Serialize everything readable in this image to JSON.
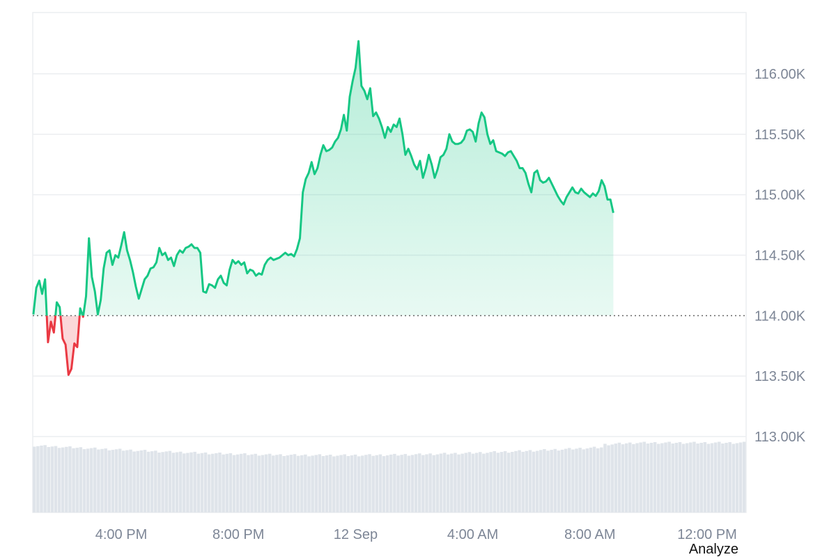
{
  "chart_data": {
    "type": "area",
    "baseline": 114000,
    "ylim": [
      112400,
      116500
    ],
    "y_ticks": [
      {
        "value": 116000,
        "label": "116.00K"
      },
      {
        "value": 115500,
        "label": "115.50K"
      },
      {
        "value": 115000,
        "label": "115.00K"
      },
      {
        "value": 114500,
        "label": "114.50K"
      },
      {
        "value": 114000,
        "label": "114.00K"
      },
      {
        "value": 113500,
        "label": "113.50K"
      },
      {
        "value": 113000,
        "label": "113.00K"
      }
    ],
    "x_ticks": [
      {
        "hour": 3.8,
        "label": "4:00 PM"
      },
      {
        "hour": 7.8,
        "label": "8:00 PM"
      },
      {
        "hour": 11.8,
        "label": "12 Sep"
      },
      {
        "hour": 15.8,
        "label": "4:00 AM"
      },
      {
        "hour": 19.8,
        "label": "8:00 AM"
      },
      {
        "hour": 23.8,
        "label": "12:00 PM"
      }
    ],
    "x_range_hours": [
      0.8,
      25.2
    ],
    "series": [
      {
        "points": [
          [
            0.8,
            114010
          ],
          [
            0.9,
            114230
          ],
          [
            1.0,
            114290
          ],
          [
            1.1,
            114180
          ],
          [
            1.2,
            114300
          ],
          [
            1.3,
            113780
          ],
          [
            1.4,
            113950
          ],
          [
            1.5,
            113860
          ],
          [
            1.6,
            114110
          ],
          [
            1.7,
            114070
          ],
          [
            1.8,
            113810
          ],
          [
            1.9,
            113760
          ],
          [
            2.0,
            113510
          ],
          [
            2.1,
            113560
          ],
          [
            2.2,
            113770
          ],
          [
            2.3,
            113740
          ],
          [
            2.4,
            114060
          ],
          [
            2.5,
            113990
          ],
          [
            2.6,
            114160
          ],
          [
            2.7,
            114640
          ],
          [
            2.8,
            114320
          ],
          [
            2.9,
            114200
          ],
          [
            3.0,
            114010
          ],
          [
            3.1,
            114130
          ],
          [
            3.2,
            114390
          ],
          [
            3.3,
            114520
          ],
          [
            3.4,
            114540
          ],
          [
            3.5,
            114420
          ],
          [
            3.6,
            114500
          ],
          [
            3.7,
            114480
          ],
          [
            3.8,
            114580
          ],
          [
            3.9,
            114690
          ],
          [
            4.0,
            114540
          ],
          [
            4.1,
            114460
          ],
          [
            4.2,
            114360
          ],
          [
            4.3,
            114240
          ],
          [
            4.4,
            114140
          ],
          [
            4.5,
            114220
          ],
          [
            4.6,
            114300
          ],
          [
            4.7,
            114330
          ],
          [
            4.8,
            114390
          ],
          [
            4.9,
            114400
          ],
          [
            5.0,
            114440
          ],
          [
            5.1,
            114560
          ],
          [
            5.2,
            114500
          ],
          [
            5.3,
            114520
          ],
          [
            5.4,
            114460
          ],
          [
            5.5,
            114480
          ],
          [
            5.6,
            114410
          ],
          [
            5.7,
            114500
          ],
          [
            5.8,
            114540
          ],
          [
            5.9,
            114520
          ],
          [
            6.0,
            114560
          ],
          [
            6.1,
            114570
          ],
          [
            6.2,
            114590
          ],
          [
            6.3,
            114560
          ],
          [
            6.4,
            114560
          ],
          [
            6.5,
            114520
          ],
          [
            6.6,
            114200
          ],
          [
            6.7,
            114190
          ],
          [
            6.8,
            114260
          ],
          [
            6.9,
            114250
          ],
          [
            7.0,
            114230
          ],
          [
            7.1,
            114300
          ],
          [
            7.2,
            114330
          ],
          [
            7.3,
            114270
          ],
          [
            7.4,
            114250
          ],
          [
            7.5,
            114380
          ],
          [
            7.6,
            114460
          ],
          [
            7.7,
            114430
          ],
          [
            7.8,
            114450
          ],
          [
            7.9,
            114420
          ],
          [
            8.0,
            114440
          ],
          [
            8.1,
            114350
          ],
          [
            8.2,
            114380
          ],
          [
            8.3,
            114370
          ],
          [
            8.4,
            114330
          ],
          [
            8.5,
            114350
          ],
          [
            8.6,
            114340
          ],
          [
            8.7,
            114420
          ],
          [
            8.8,
            114460
          ],
          [
            8.9,
            114480
          ],
          [
            9.0,
            114460
          ],
          [
            9.1,
            114470
          ],
          [
            9.2,
            114480
          ],
          [
            9.3,
            114500
          ],
          [
            9.4,
            114520
          ],
          [
            9.5,
            114500
          ],
          [
            9.6,
            114510
          ],
          [
            9.7,
            114490
          ],
          [
            9.8,
            114550
          ],
          [
            9.9,
            114640
          ],
          [
            10.0,
            115020
          ],
          [
            10.1,
            115130
          ],
          [
            10.2,
            115180
          ],
          [
            10.3,
            115270
          ],
          [
            10.4,
            115170
          ],
          [
            10.5,
            115220
          ],
          [
            10.6,
            115330
          ],
          [
            10.7,
            115410
          ],
          [
            10.8,
            115360
          ],
          [
            10.9,
            115370
          ],
          [
            11.0,
            115390
          ],
          [
            11.1,
            115440
          ],
          [
            11.2,
            115470
          ],
          [
            11.3,
            115540
          ],
          [
            11.4,
            115660
          ],
          [
            11.5,
            115530
          ],
          [
            11.6,
            115810
          ],
          [
            11.7,
            115940
          ],
          [
            11.8,
            116050
          ],
          [
            11.9,
            116270
          ],
          [
            12.0,
            115900
          ],
          [
            12.1,
            115860
          ],
          [
            12.2,
            115790
          ],
          [
            12.3,
            115880
          ],
          [
            12.4,
            115650
          ],
          [
            12.5,
            115680
          ],
          [
            12.6,
            115630
          ],
          [
            12.7,
            115560
          ],
          [
            12.8,
            115470
          ],
          [
            12.9,
            115560
          ],
          [
            13.0,
            115520
          ],
          [
            13.1,
            115580
          ],
          [
            13.2,
            115560
          ],
          [
            13.3,
            115630
          ],
          [
            13.4,
            115500
          ],
          [
            13.5,
            115330
          ],
          [
            13.6,
            115380
          ],
          [
            13.7,
            115320
          ],
          [
            13.8,
            115250
          ],
          [
            13.9,
            115210
          ],
          [
            14.0,
            115280
          ],
          [
            14.1,
            115140
          ],
          [
            14.2,
            115220
          ],
          [
            14.3,
            115330
          ],
          [
            14.4,
            115250
          ],
          [
            14.5,
            115140
          ],
          [
            14.6,
            115210
          ],
          [
            14.7,
            115310
          ],
          [
            14.8,
            115330
          ],
          [
            14.9,
            115380
          ],
          [
            15.0,
            115500
          ],
          [
            15.1,
            115440
          ],
          [
            15.2,
            115420
          ],
          [
            15.3,
            115420
          ],
          [
            15.4,
            115430
          ],
          [
            15.5,
            115460
          ],
          [
            15.6,
            115530
          ],
          [
            15.7,
            115540
          ],
          [
            15.8,
            115520
          ],
          [
            15.9,
            115440
          ],
          [
            16.0,
            115590
          ],
          [
            16.1,
            115680
          ],
          [
            16.2,
            115640
          ],
          [
            16.3,
            115500
          ],
          [
            16.4,
            115420
          ],
          [
            16.5,
            115450
          ],
          [
            16.6,
            115360
          ],
          [
            16.7,
            115350
          ],
          [
            16.8,
            115340
          ],
          [
            16.9,
            115320
          ],
          [
            17.0,
            115350
          ],
          [
            17.1,
            115360
          ],
          [
            17.2,
            115320
          ],
          [
            17.3,
            115280
          ],
          [
            17.4,
            115220
          ],
          [
            17.5,
            115220
          ],
          [
            17.6,
            115180
          ],
          [
            17.7,
            115090
          ],
          [
            17.8,
            115020
          ],
          [
            17.9,
            115180
          ],
          [
            18.0,
            115200
          ],
          [
            18.1,
            115120
          ],
          [
            18.2,
            115100
          ],
          [
            18.3,
            115110
          ],
          [
            18.4,
            115140
          ],
          [
            18.5,
            115090
          ],
          [
            18.6,
            115040
          ],
          [
            18.7,
            114990
          ],
          [
            18.8,
            114950
          ],
          [
            18.9,
            114920
          ],
          [
            19.0,
            114980
          ],
          [
            19.1,
            115020
          ],
          [
            19.2,
            115060
          ],
          [
            19.3,
            115020
          ],
          [
            19.4,
            115010
          ],
          [
            19.5,
            115050
          ],
          [
            19.6,
            115020
          ],
          [
            19.7,
            115000
          ],
          [
            19.8,
            114980
          ],
          [
            19.9,
            115010
          ],
          [
            20.0,
            114990
          ],
          [
            20.1,
            115030
          ],
          [
            20.2,
            115120
          ],
          [
            20.3,
            115070
          ],
          [
            20.4,
            114960
          ],
          [
            20.5,
            114960
          ],
          [
            20.6,
            114850
          ]
        ]
      }
    ]
  },
  "ui": {
    "analyze_label": "Analyze",
    "colors": {
      "up": "#16c784",
      "down": "#ea3943",
      "grid": "#eceef1",
      "tick_text": "#7d8696",
      "volume": "#dfe4ea"
    }
  }
}
